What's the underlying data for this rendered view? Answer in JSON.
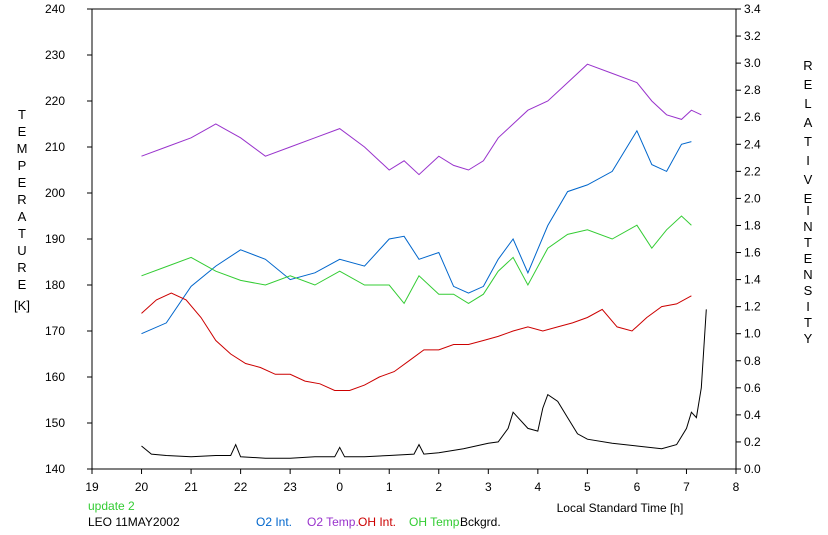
{
  "chart_data": {
    "type": "line",
    "left_axis": {
      "label_letters": [
        "T",
        "E",
        "M",
        "P",
        "E",
        "R",
        "A",
        "T",
        "U",
        "R",
        "E"
      ],
      "unit": "[K]",
      "ylim": [
        140,
        240
      ],
      "ticks": [
        140,
        150,
        160,
        170,
        180,
        190,
        200,
        210,
        220,
        230,
        240
      ]
    },
    "right_axis": {
      "label_letters_1": [
        "R",
        "E",
        "L",
        "A",
        "T",
        "I",
        "V",
        "E"
      ],
      "label_letters_2": [
        "I",
        "N",
        "T",
        "E",
        "N",
        "S",
        "I",
        "T",
        "Y"
      ],
      "ylim": [
        0.0,
        3.4
      ],
      "ticks": [
        "0.0",
        "0.2",
        "0.4",
        "0.6",
        "0.8",
        "1.0",
        "1.2",
        "1.4",
        "1.6",
        "1.8",
        "2.0",
        "2.2",
        "2.4",
        "2.6",
        "2.8",
        "3.0",
        "3.2",
        "3.4"
      ]
    },
    "x_axis": {
      "label": "Local Standard Time [h]",
      "xlim": [
        19,
        32
      ],
      "ticks": [
        19,
        20,
        21,
        22,
        23,
        24,
        25,
        26,
        27,
        28,
        29,
        30,
        31,
        32
      ],
      "tick_labels": [
        "19",
        "20",
        "21",
        "22",
        "23",
        "0",
        "1",
        "2",
        "3",
        "4",
        "5",
        "6",
        "7",
        "8"
      ]
    },
    "grid": false,
    "legend_position": "bottom",
    "series": [
      {
        "name": "O2 Int.",
        "axis": "right",
        "color": "#0066cc",
        "x": [
          20.0,
          20.5,
          21.0,
          21.5,
          22.0,
          22.5,
          23.0,
          23.5,
          24.0,
          24.5,
          25.0,
          25.3,
          25.6,
          26.0,
          26.3,
          26.6,
          26.9,
          27.2,
          27.5,
          27.8,
          28.2,
          28.6,
          29.0,
          29.5,
          30.0,
          30.3,
          30.6,
          30.9,
          31.1
        ],
        "y": [
          1.0,
          1.08,
          1.35,
          1.5,
          1.62,
          1.55,
          1.4,
          1.45,
          1.55,
          1.5,
          1.7,
          1.72,
          1.55,
          1.6,
          1.35,
          1.3,
          1.35,
          1.55,
          1.7,
          1.45,
          1.8,
          2.05,
          2.1,
          2.2,
          2.5,
          2.25,
          2.2,
          2.4,
          2.42
        ]
      },
      {
        "name": "O2 Temp.",
        "axis": "left",
        "color": "#9933cc",
        "x": [
          20.0,
          20.5,
          21.0,
          21.5,
          22.0,
          22.5,
          23.0,
          23.5,
          24.0,
          24.5,
          25.0,
          25.3,
          25.6,
          26.0,
          26.3,
          26.6,
          26.9,
          27.2,
          27.5,
          27.8,
          28.2,
          28.6,
          29.0,
          29.5,
          30.0,
          30.3,
          30.6,
          30.9,
          31.1,
          31.3
        ],
        "y": [
          208,
          210,
          212,
          215,
          212,
          208,
          210,
          212,
          214,
          210,
          205,
          207,
          204,
          208,
          206,
          205,
          207,
          212,
          215,
          218,
          220,
          224,
          228,
          226,
          224,
          220,
          217,
          216,
          218,
          217
        ]
      },
      {
        "name": "OH Int.",
        "axis": "right",
        "color": "#cc0000",
        "x": [
          20.0,
          20.3,
          20.6,
          20.9,
          21.2,
          21.5,
          21.8,
          22.1,
          22.4,
          22.7,
          23.0,
          23.3,
          23.6,
          23.9,
          24.2,
          24.5,
          24.8,
          25.1,
          25.4,
          25.7,
          26.0,
          26.3,
          26.6,
          26.9,
          27.2,
          27.5,
          27.8,
          28.1,
          28.4,
          28.7,
          29.0,
          29.3,
          29.6,
          29.9,
          30.2,
          30.5,
          30.8,
          31.1
        ],
        "y": [
          1.15,
          1.25,
          1.3,
          1.25,
          1.12,
          0.95,
          0.85,
          0.78,
          0.75,
          0.7,
          0.7,
          0.65,
          0.63,
          0.58,
          0.58,
          0.62,
          0.68,
          0.72,
          0.8,
          0.88,
          0.88,
          0.92,
          0.92,
          0.95,
          0.98,
          1.02,
          1.05,
          1.02,
          1.05,
          1.08,
          1.12,
          1.18,
          1.05,
          1.02,
          1.12,
          1.2,
          1.22,
          1.28
        ]
      },
      {
        "name": "OH Temp.",
        "axis": "left",
        "color": "#33cc33",
        "x": [
          20.0,
          20.5,
          21.0,
          21.5,
          22.0,
          22.5,
          23.0,
          23.5,
          24.0,
          24.5,
          25.0,
          25.3,
          25.6,
          26.0,
          26.3,
          26.6,
          26.9,
          27.2,
          27.5,
          27.8,
          28.2,
          28.6,
          29.0,
          29.5,
          30.0,
          30.3,
          30.6,
          30.9,
          31.1
        ],
        "y": [
          182,
          184,
          186,
          183,
          181,
          180,
          182,
          180,
          183,
          180,
          180,
          176,
          182,
          178,
          178,
          176,
          178,
          183,
          186,
          180,
          188,
          191,
          192,
          190,
          193,
          188,
          192,
          195,
          193
        ]
      },
      {
        "name": "Bckgrd.",
        "axis": "right",
        "color": "#000000",
        "x": [
          20.0,
          20.2,
          20.5,
          21.0,
          21.5,
          21.8,
          21.9,
          22.0,
          22.5,
          23.0,
          23.5,
          23.9,
          24.0,
          24.1,
          24.5,
          25.0,
          25.5,
          25.6,
          25.7,
          26.0,
          26.5,
          27.0,
          27.2,
          27.4,
          27.5,
          27.6,
          27.8,
          28.0,
          28.1,
          28.2,
          28.4,
          28.6,
          28.8,
          29.0,
          29.5,
          30.0,
          30.5,
          30.8,
          31.0,
          31.1,
          31.2,
          31.3,
          31.4
        ],
        "y": [
          0.17,
          0.11,
          0.1,
          0.09,
          0.1,
          0.1,
          0.18,
          0.09,
          0.08,
          0.08,
          0.09,
          0.09,
          0.16,
          0.09,
          0.09,
          0.1,
          0.11,
          0.18,
          0.11,
          0.12,
          0.15,
          0.19,
          0.2,
          0.3,
          0.42,
          0.38,
          0.3,
          0.28,
          0.45,
          0.55,
          0.5,
          0.38,
          0.26,
          0.22,
          0.19,
          0.17,
          0.15,
          0.18,
          0.3,
          0.42,
          0.38,
          0.6,
          1.18
        ]
      }
    ]
  },
  "footer": {
    "update_label": "update 2",
    "station_label": "LEO 11MAY2002",
    "legend": [
      {
        "label": "O2 Int.",
        "color": "#0066cc"
      },
      {
        "label": "O2 Temp.",
        "color": "#9933cc"
      },
      {
        "label": "OH Int.",
        "color": "#cc0000"
      },
      {
        "label": "OH Temp.",
        "color": "#33cc33"
      },
      {
        "label": "Bckgrd.",
        "color": "#000000"
      }
    ],
    "update_color": "#33cc33"
  }
}
